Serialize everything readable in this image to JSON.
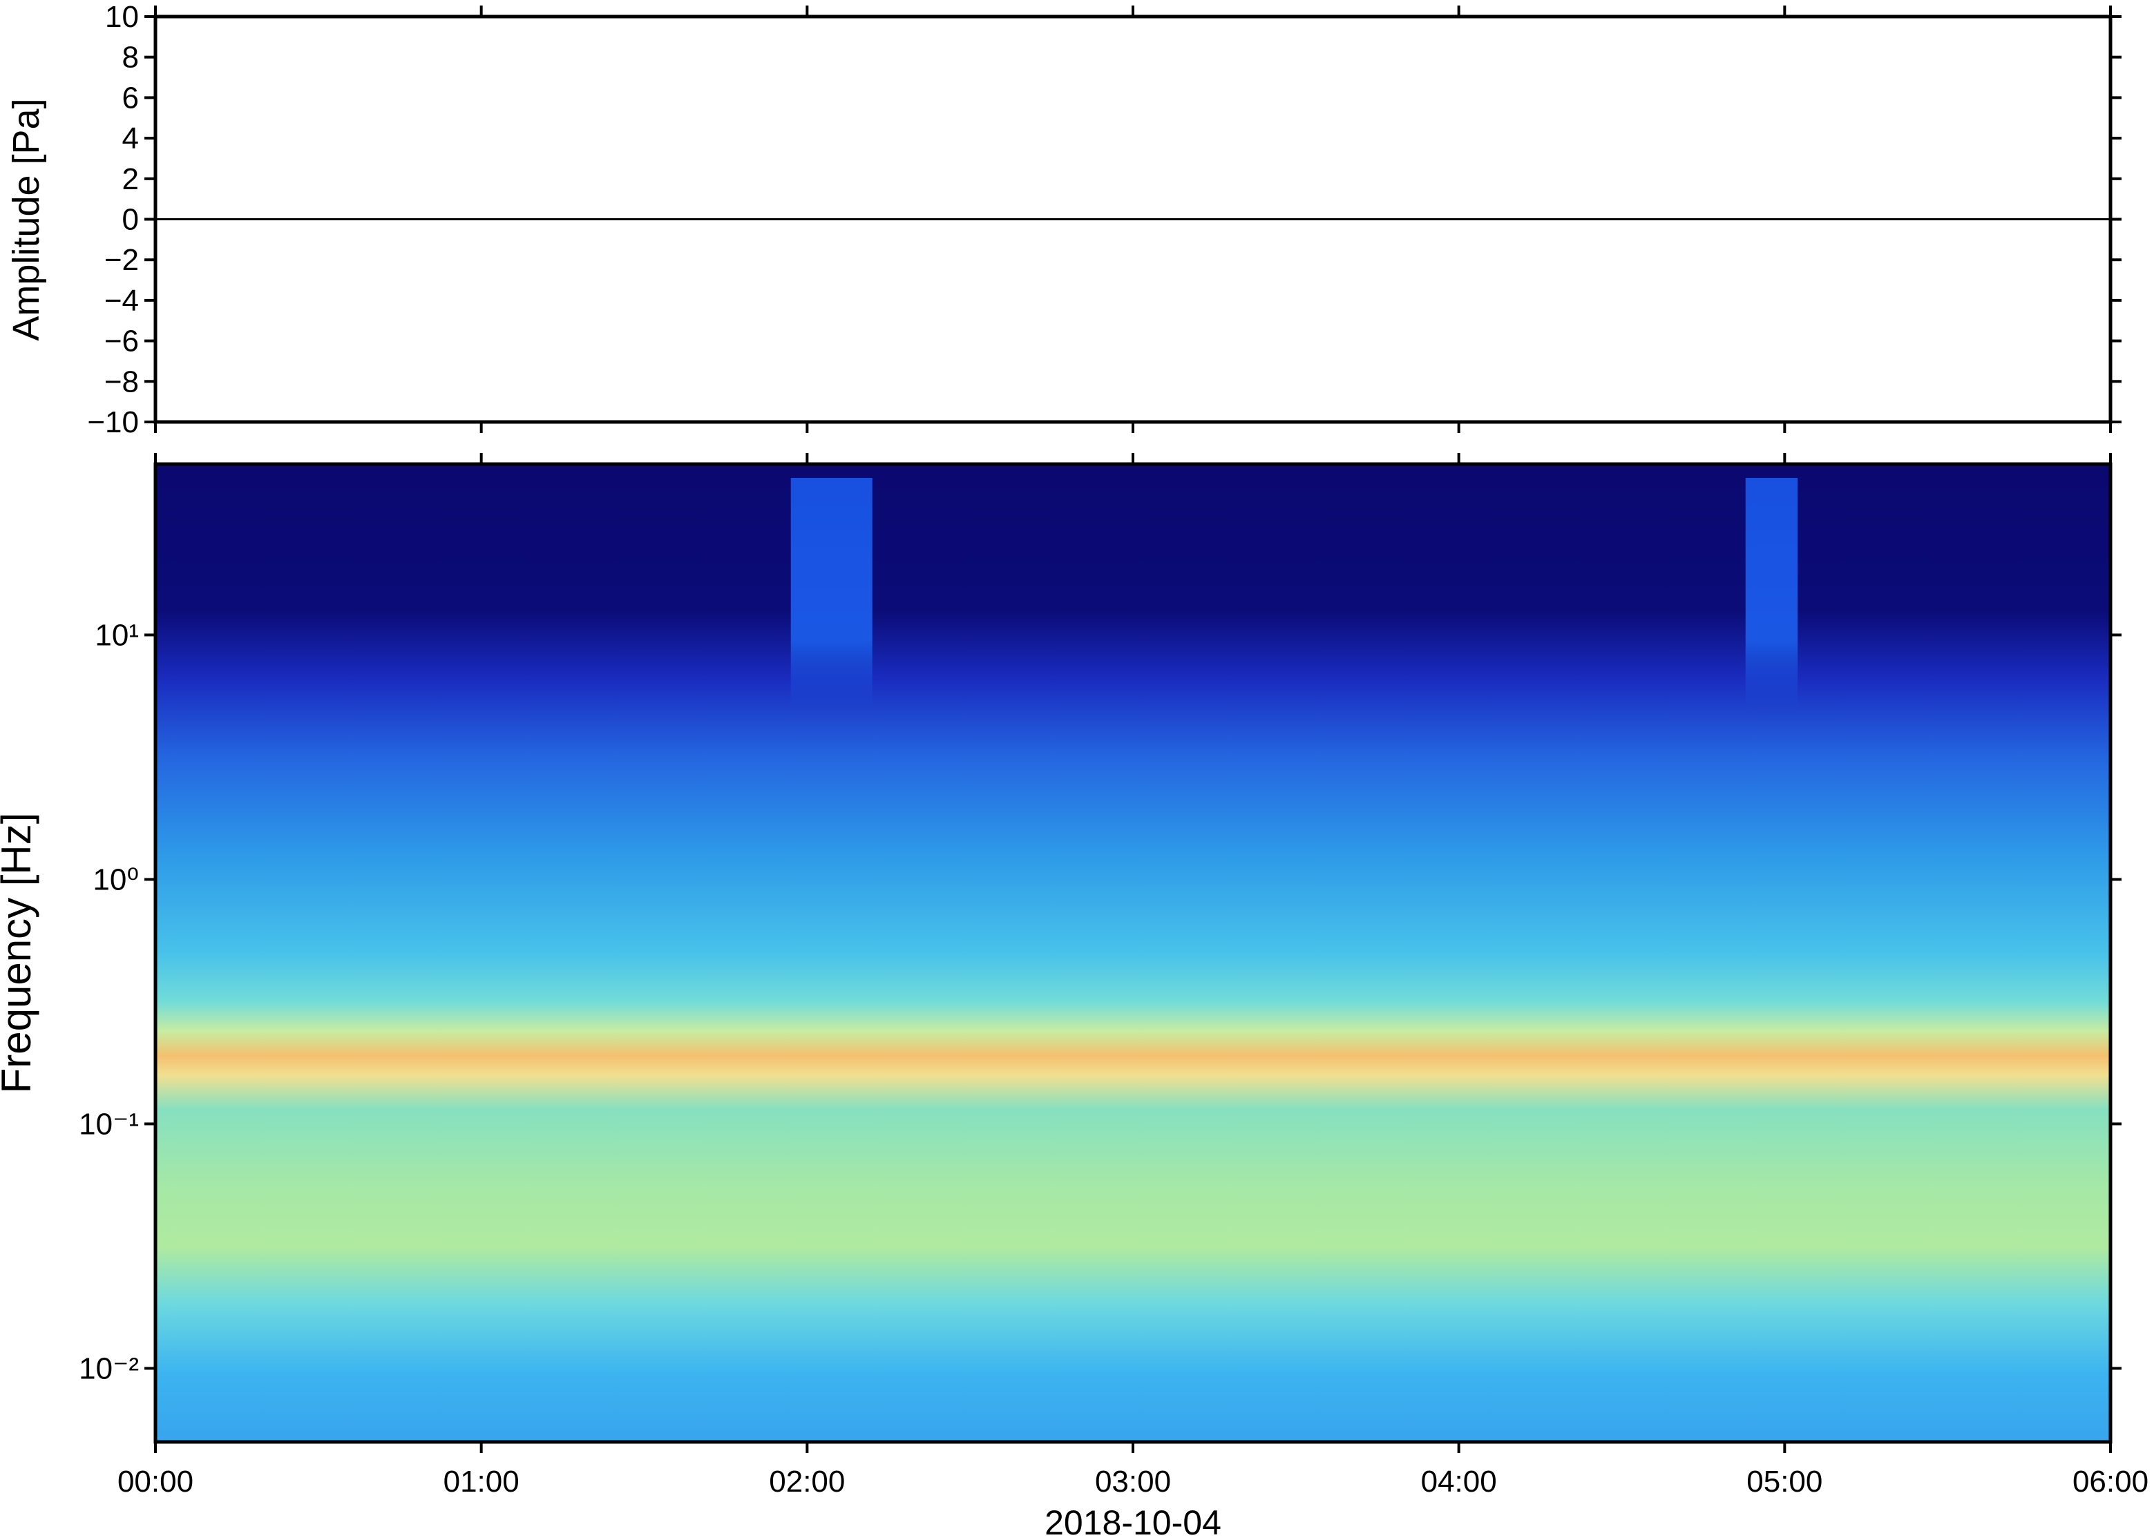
{
  "chart_data": [
    {
      "type": "line",
      "ylabel": "Amplitude [Pa]",
      "x": [
        0,
        6
      ],
      "values": [
        0,
        0
      ],
      "color": "#000000",
      "xlim": [
        0,
        6
      ],
      "ylim": [
        -10,
        10
      ],
      "yticks": [
        {
          "value": -10,
          "label": "−10"
        },
        {
          "value": -8,
          "label": "−8"
        },
        {
          "value": -6,
          "label": "−6"
        },
        {
          "value": -4,
          "label": "−4"
        },
        {
          "value": -2,
          "label": "−2"
        },
        0,
        2,
        4,
        6,
        8,
        10
      ]
    },
    {
      "type": "spectrogram",
      "ylabel": "Frequency [Hz]",
      "xlabel": "2018-10-04",
      "log_y": true,
      "xlim": [
        0,
        6
      ],
      "xticks": [
        {
          "value": 0,
          "label": "00:00"
        },
        {
          "value": 1,
          "label": "01:00"
        },
        {
          "value": 2,
          "label": "02:00"
        },
        {
          "value": 3,
          "label": "03:00"
        },
        {
          "value": 4,
          "label": "04:00"
        },
        {
          "value": 5,
          "label": "05:00"
        },
        {
          "value": 6,
          "label": "06:00"
        }
      ],
      "ylim": [
        0.005,
        50
      ],
      "yticks": [
        {
          "value": 0.01,
          "label": "10⁻²"
        },
        {
          "value": 0.1,
          "label": "10⁻¹"
        },
        {
          "value": 1,
          "label": "10⁰"
        },
        {
          "value": 10,
          "label": "10¹"
        }
      ]
    }
  ]
}
